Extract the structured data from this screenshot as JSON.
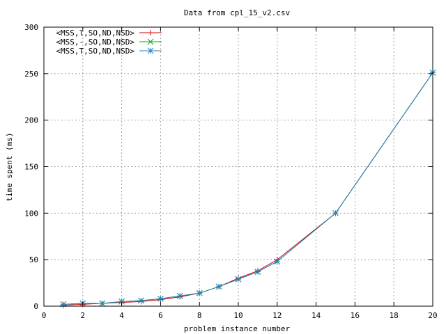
{
  "chart_data": {
    "type": "line",
    "title": "Data from cpl_15_v2.csv",
    "xlabel": "problem instance number",
    "ylabel": "time spent (ms)",
    "xlim": [
      0,
      20
    ],
    "ylim": [
      0,
      300
    ],
    "xticks": [
      0,
      2,
      4,
      6,
      8,
      10,
      12,
      14,
      16,
      18,
      20
    ],
    "yticks": [
      0,
      50,
      100,
      150,
      200,
      250,
      300
    ],
    "grid": true,
    "legend_position": "top-left",
    "series": [
      {
        "name": "<MSS,l,SO,ND,NSD>",
        "color": "#d00000",
        "marker": "plus",
        "x": [
          1,
          2,
          3,
          4,
          5,
          6,
          7,
          8,
          9,
          10,
          11,
          12,
          15,
          20
        ],
        "y": [
          1,
          2,
          3,
          4,
          5,
          7,
          10,
          14,
          21,
          30,
          38,
          50,
          100,
          251
        ]
      },
      {
        "name": "<MSS,-,SO,ND,NSD>",
        "color": "#00b000",
        "marker": "cross",
        "x": [
          1,
          2,
          3,
          4,
          5,
          6,
          7,
          8,
          9,
          10,
          11,
          12,
          15,
          20
        ],
        "y": [
          2,
          3,
          3,
          5,
          6,
          8,
          11,
          14,
          21,
          29,
          37,
          48,
          100,
          251
        ]
      },
      {
        "name": "<MSS,T,SO,ND,NSD>",
        "color": "#2a7fc0",
        "marker": "star",
        "x": [
          1,
          2,
          3,
          4,
          5,
          6,
          7,
          8,
          9,
          10,
          11,
          12,
          15,
          20
        ],
        "y": [
          2,
          3,
          3,
          5,
          6,
          8,
          11,
          14,
          21,
          29,
          37,
          48,
          100,
          251
        ]
      }
    ]
  }
}
